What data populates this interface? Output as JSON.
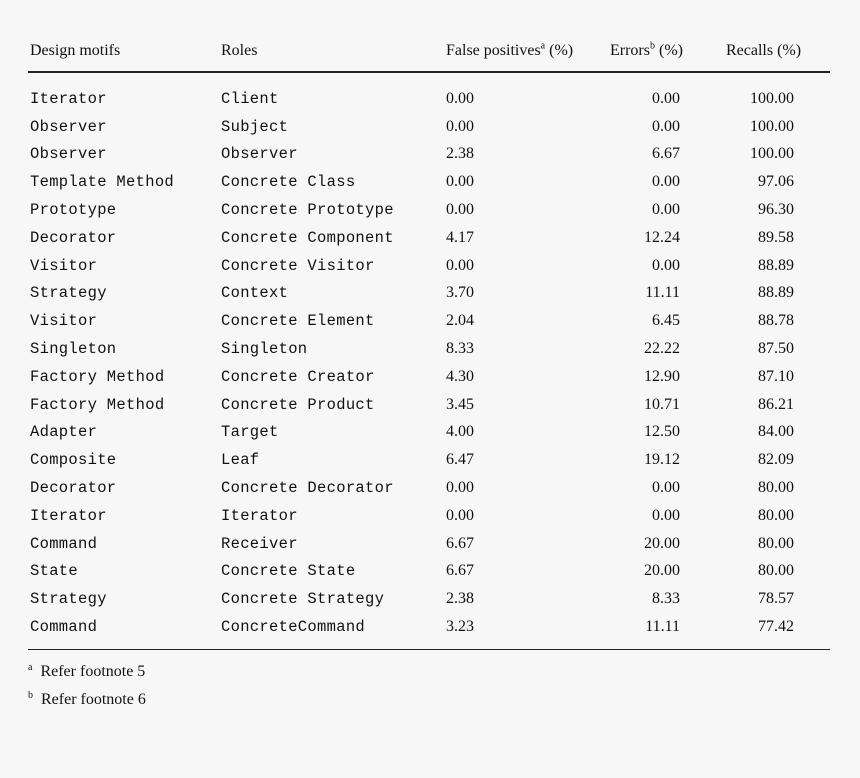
{
  "table": {
    "headers": {
      "motif": "Design motifs",
      "role": "Roles",
      "fp": "False positives",
      "fp_sup": "a",
      "fp_unit": " (%)",
      "err": "Errors",
      "err_sup": "b",
      "err_unit": " (%)",
      "rec": "Recalls (%)"
    },
    "rows": [
      {
        "motif": "Iterator",
        "role": "Client",
        "fp": "0.00",
        "err": "0.00",
        "rec": "100.00"
      },
      {
        "motif": "Observer",
        "role": "Subject",
        "fp": "0.00",
        "err": "0.00",
        "rec": "100.00"
      },
      {
        "motif": "Observer",
        "role": "Observer",
        "fp": "2.38",
        "err": "6.67",
        "rec": "100.00"
      },
      {
        "motif": "Template Method",
        "role": "Concrete Class",
        "fp": "0.00",
        "err": "0.00",
        "rec": "97.06"
      },
      {
        "motif": "Prototype",
        "role": "Concrete Prototype",
        "fp": "0.00",
        "err": "0.00",
        "rec": "96.30"
      },
      {
        "motif": "Decorator",
        "role": "Concrete Component",
        "fp": "4.17",
        "err": "12.24",
        "rec": "89.58"
      },
      {
        "motif": "Visitor",
        "role": "Concrete Visitor",
        "fp": "0.00",
        "err": "0.00",
        "rec": "88.89"
      },
      {
        "motif": "Strategy",
        "role": "Context",
        "fp": "3.70",
        "err": "11.11",
        "rec": "88.89"
      },
      {
        "motif": "Visitor",
        "role": "Concrete Element",
        "fp": "2.04",
        "err": "6.45",
        "rec": "88.78"
      },
      {
        "motif": "Singleton",
        "role": "Singleton",
        "fp": "8.33",
        "err": "22.22",
        "rec": "87.50"
      },
      {
        "motif": "Factory Method",
        "role": "Concrete Creator",
        "fp": "4.30",
        "err": "12.90",
        "rec": "87.10"
      },
      {
        "motif": "Factory Method",
        "role": "Concrete Product",
        "fp": "3.45",
        "err": "10.71",
        "rec": "86.21"
      },
      {
        "motif": "Adapter",
        "role": "Target",
        "fp": "4.00",
        "err": "12.50",
        "rec": "84.00"
      },
      {
        "motif": "Composite",
        "role": "Leaf",
        "fp": "6.47",
        "err": "19.12",
        "rec": "82.09"
      },
      {
        "motif": "Decorator",
        "role": "Concrete Decorator",
        "fp": "0.00",
        "err": "0.00",
        "rec": "80.00"
      },
      {
        "motif": "Iterator",
        "role": "Iterator",
        "fp": "0.00",
        "err": "0.00",
        "rec": "80.00"
      },
      {
        "motif": "Command",
        "role": "Receiver",
        "fp": "6.67",
        "err": "20.00",
        "rec": "80.00"
      },
      {
        "motif": "State",
        "role": "Concrete State",
        "fp": "6.67",
        "err": "20.00",
        "rec": "80.00"
      },
      {
        "motif": "Strategy",
        "role": "Concrete Strategy",
        "fp": "2.38",
        "err": "8.33",
        "rec": "78.57"
      },
      {
        "motif": "Command",
        "role": "ConcreteCommand",
        "fp": "3.23",
        "err": "11.11",
        "rec": "77.42"
      }
    ]
  },
  "footnotes": [
    {
      "mark": "a",
      "text": "Refer footnote 5"
    },
    {
      "mark": "b",
      "text": "Refer footnote 6"
    }
  ]
}
